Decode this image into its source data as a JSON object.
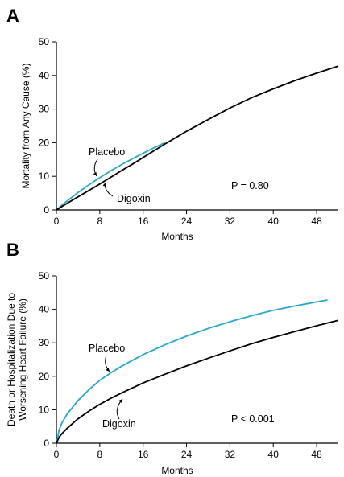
{
  "chart_data": [
    {
      "panel": "A",
      "type": "line",
      "xlabel": "Months",
      "ylabel": "Mortality from Any Cause (%)",
      "xlim": [
        0,
        52
      ],
      "ylim": [
        0,
        50
      ],
      "xticks": [
        0,
        8,
        16,
        24,
        32,
        40,
        48
      ],
      "yticks": [
        0,
        10,
        20,
        30,
        40,
        50
      ],
      "series": [
        {
          "name": "Placebo",
          "color": "#2aa6c9",
          "x": [
            0,
            1,
            2,
            4,
            6,
            8,
            10,
            12,
            14,
            16,
            18,
            20
          ],
          "y": [
            0,
            1.4,
            2.7,
            5.2,
            7.5,
            9.6,
            11.6,
            13.5,
            15.2,
            16.9,
            18.5,
            20.0
          ]
        },
        {
          "name": "Digoxin",
          "color": "#000000",
          "x": [
            0,
            1,
            2,
            4,
            6,
            8,
            10,
            12,
            14,
            16,
            18,
            20,
            24,
            28,
            32,
            36,
            40,
            44,
            48,
            52
          ],
          "y": [
            0,
            1.0,
            2.0,
            3.9,
            5.8,
            7.7,
            9.7,
            11.7,
            13.6,
            15.6,
            17.6,
            19.6,
            23.4,
            26.9,
            30.3,
            33.4,
            36.0,
            38.5,
            40.7,
            42.8
          ]
        }
      ],
      "annotations": [
        "Placebo",
        "Digoxin",
        "P = 0.80"
      ]
    },
    {
      "panel": "B",
      "type": "line",
      "xlabel": "Months",
      "ylabel": "Death or Hospitalization Due to Worsening Heart Failure (%)",
      "xlim": [
        0,
        52
      ],
      "ylim": [
        0,
        50
      ],
      "xticks": [
        0,
        8,
        16,
        24,
        32,
        40,
        48
      ],
      "yticks": [
        0,
        10,
        20,
        30,
        40,
        50
      ],
      "series": [
        {
          "name": "Placebo",
          "color": "#2aa6c9",
          "x": [
            0,
            0.5,
            1,
            2,
            4,
            6,
            8,
            10,
            12,
            16,
            20,
            24,
            28,
            32,
            36,
            40,
            44,
            48,
            50
          ],
          "y": [
            0,
            4.0,
            6.0,
            8.8,
            12.8,
            16.0,
            18.8,
            21.0,
            23.0,
            26.5,
            29.4,
            32.0,
            34.3,
            36.3,
            38.1,
            39.7,
            41.0,
            42.2,
            42.8
          ]
        },
        {
          "name": "Digoxin",
          "color": "#000000",
          "x": [
            0,
            0.5,
            1,
            2,
            4,
            6,
            8,
            10,
            12,
            16,
            20,
            24,
            28,
            32,
            36,
            40,
            44,
            48,
            52
          ],
          "y": [
            0,
            1.8,
            2.8,
            4.5,
            7.3,
            9.6,
            11.6,
            13.4,
            15.0,
            18.0,
            20.6,
            23.1,
            25.4,
            27.6,
            29.7,
            31.6,
            33.4,
            35.1,
            36.7
          ]
        }
      ],
      "annotations": [
        "Placebo",
        "Digoxin",
        "P < 0.001"
      ]
    }
  ]
}
